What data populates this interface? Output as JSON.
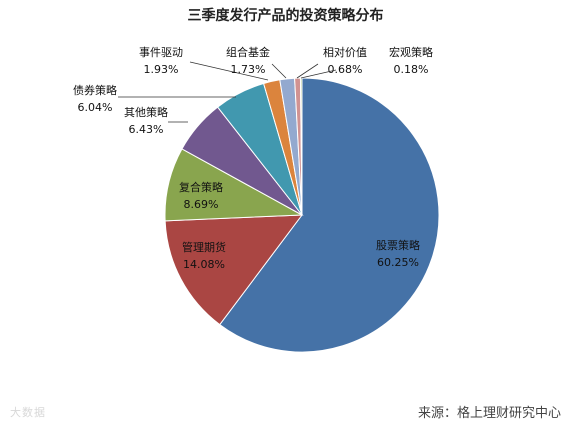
{
  "chart_data": {
    "type": "pie",
    "title": "三季度发行产品的投资策略分布",
    "slices": [
      {
        "label": "股票策略",
        "value": 60.25,
        "value_text": "60.25%",
        "color": "#4572a7"
      },
      {
        "label": "管理期货",
        "value": 14.08,
        "value_text": "14.08%",
        "color": "#aa4643"
      },
      {
        "label": "复合策略",
        "value": 8.69,
        "value_text": "8.69%",
        "color": "#89a54e"
      },
      {
        "label": "其他策略",
        "value": 6.43,
        "value_text": "6.43%",
        "color": "#71588f"
      },
      {
        "label": "债券策略",
        "value": 6.04,
        "value_text": "6.04%",
        "color": "#4198af"
      },
      {
        "label": "事件驱动",
        "value": 1.93,
        "value_text": "1.93%",
        "color": "#db843d"
      },
      {
        "label": "组合基金",
        "value": 1.73,
        "value_text": "1.73%",
        "color": "#93a9cf"
      },
      {
        "label": "相对价值",
        "value": 0.68,
        "value_text": "0.68%",
        "color": "#d19392"
      },
      {
        "label": "宏观策略",
        "value": 0.18,
        "value_text": "0.18%",
        "color": "#b9cd96"
      }
    ],
    "legend": "none"
  },
  "source_text": "来源：格上理财研究中心",
  "watermark_text": "大数据"
}
